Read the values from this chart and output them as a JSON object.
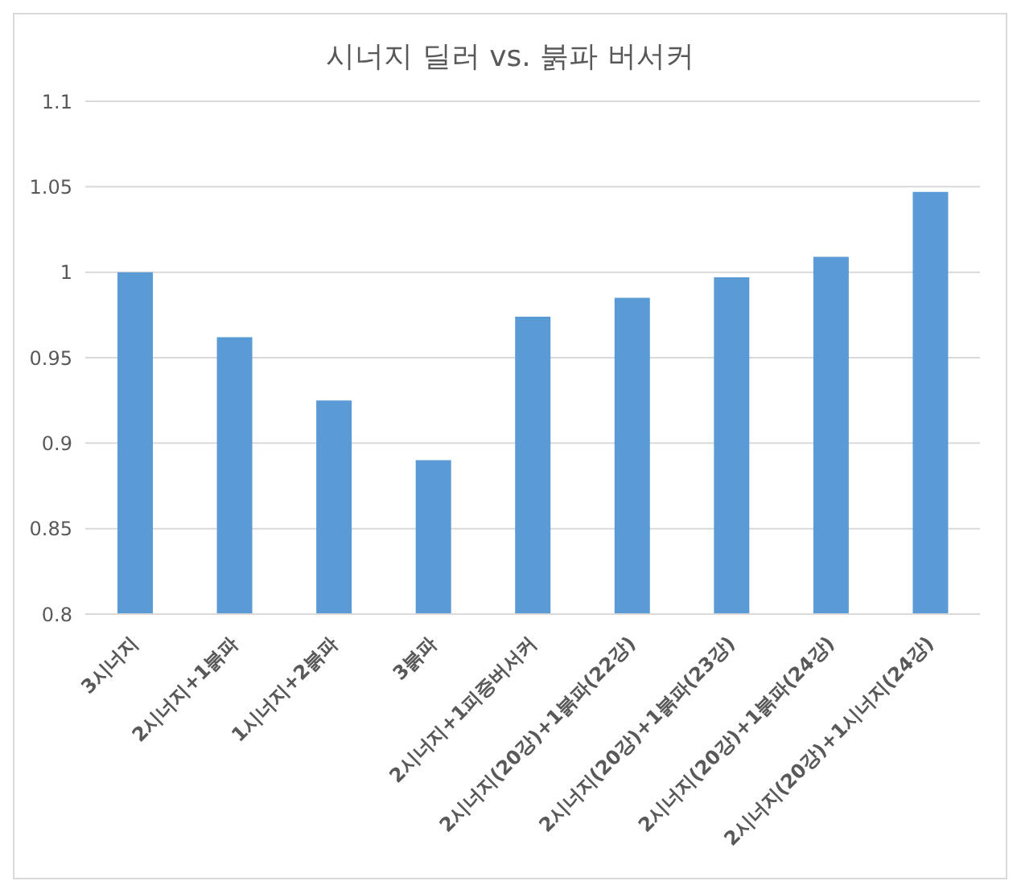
{
  "chart_data": {
    "type": "bar",
    "title": "시너지 딜러 vs. 붉파 버서커",
    "categories": [
      "3시너지",
      "2시너지+1붉파",
      "1시너지+2붉파",
      "3붉파",
      "2시너지+1피증버서커",
      "2시너지(20강)+1붉파(22강)",
      "2시너지(20강)+1붉파(23강)",
      "2시너지(20강)+1붉파(24강)",
      "2시너지(20강)+1시너지(24강)"
    ],
    "values": [
      1,
      0.962,
      0.925,
      0.89,
      0.974,
      0.985,
      0.997,
      1.009,
      1.047
    ],
    "color": "#5b9bd5",
    "ylim": [
      0.8,
      1.1
    ],
    "yticks": [
      0.8,
      0.85,
      0.9,
      0.95,
      1,
      1.05,
      1.1
    ],
    "grid": "y"
  }
}
